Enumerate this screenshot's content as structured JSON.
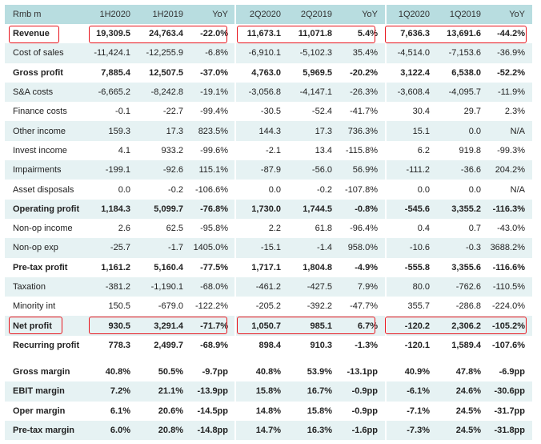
{
  "headers": [
    "Rmb m",
    "1H2020",
    "1H2019",
    "YoY",
    "2Q2020",
    "2Q2019",
    "YoY",
    "1Q2020",
    "1Q2019",
    "YoY"
  ],
  "rows": [
    {
      "label": "Revenue",
      "bold": true,
      "values": [
        "19,309.5",
        "24,763.4",
        "-22.0%",
        "11,673.1",
        "11,071.8",
        "5.4%",
        "7,636.3",
        "13,691.6",
        "-44.2%"
      ],
      "highlighted": true
    },
    {
      "label": "Cost of sales",
      "bold": false,
      "values": [
        "-11,424.1",
        "-12,255.9",
        "-6.8%",
        "-6,910.1",
        "-5,102.3",
        "35.4%",
        "-4,514.0",
        "-7,153.6",
        "-36.9%"
      ]
    },
    {
      "label": "Gross profit",
      "bold": true,
      "values": [
        "7,885.4",
        "12,507.5",
        "-37.0%",
        "4,763.0",
        "5,969.5",
        "-20.2%",
        "3,122.4",
        "6,538.0",
        "-52.2%"
      ]
    },
    {
      "label": "S&A costs",
      "bold": false,
      "values": [
        "-6,665.2",
        "-8,242.8",
        "-19.1%",
        "-3,056.8",
        "-4,147.1",
        "-26.3%",
        "-3,608.4",
        "-4,095.7",
        "-11.9%"
      ]
    },
    {
      "label": "Finance costs",
      "bold": false,
      "values": [
        "-0.1",
        "-22.7",
        "-99.4%",
        "-30.5",
        "-52.4",
        "-41.7%",
        "30.4",
        "29.7",
        "2.3%"
      ]
    },
    {
      "label": "Other income",
      "bold": false,
      "values": [
        "159.3",
        "17.3",
        "823.5%",
        "144.3",
        "17.3",
        "736.3%",
        "15.1",
        "0.0",
        "N/A"
      ]
    },
    {
      "label": "Invest income",
      "bold": false,
      "values": [
        "4.1",
        "933.2",
        "-99.6%",
        "-2.1",
        "13.4",
        "-115.8%",
        "6.2",
        "919.8",
        "-99.3%"
      ]
    },
    {
      "label": "Impairments",
      "bold": false,
      "values": [
        "-199.1",
        "-92.6",
        "115.1%",
        "-87.9",
        "-56.0",
        "56.9%",
        "-111.2",
        "-36.6",
        "204.2%"
      ]
    },
    {
      "label": "Asset disposals",
      "bold": false,
      "values": [
        "0.0",
        "-0.2",
        "-106.6%",
        "0.0",
        "-0.2",
        "-107.8%",
        "0.0",
        "0.0",
        "N/A"
      ]
    },
    {
      "label": "Operating profit",
      "bold": true,
      "values": [
        "1,184.3",
        "5,099.7",
        "-76.8%",
        "1,730.0",
        "1,744.5",
        "-0.8%",
        "-545.6",
        "3,355.2",
        "-116.3%"
      ]
    },
    {
      "label": "Non-op income",
      "bold": false,
      "values": [
        "2.6",
        "62.5",
        "-95.8%",
        "2.2",
        "61.8",
        "-96.4%",
        "0.4",
        "0.7",
        "-43.0%"
      ]
    },
    {
      "label": "Non-op exp",
      "bold": false,
      "values": [
        "-25.7",
        "-1.7",
        "1405.0%",
        "-15.1",
        "-1.4",
        "958.0%",
        "-10.6",
        "-0.3",
        "3688.2%"
      ]
    },
    {
      "label": "Pre-tax profit",
      "bold": true,
      "values": [
        "1,161.2",
        "5,160.4",
        "-77.5%",
        "1,717.1",
        "1,804.8",
        "-4.9%",
        "-555.8",
        "3,355.6",
        "-116.6%"
      ]
    },
    {
      "label": "Taxation",
      "bold": false,
      "values": [
        "-381.2",
        "-1,190.1",
        "-68.0%",
        "-461.2",
        "-427.5",
        "7.9%",
        "80.0",
        "-762.6",
        "-110.5%"
      ]
    },
    {
      "label": "Minority int",
      "bold": false,
      "values": [
        "150.5",
        "-679.0",
        "-122.2%",
        "-205.2",
        "-392.2",
        "-47.7%",
        "355.7",
        "-286.8",
        "-224.0%"
      ]
    },
    {
      "label": "Net profit",
      "bold": true,
      "values": [
        "930.5",
        "3,291.4",
        "-71.7%",
        "1,050.7",
        "985.1",
        "6.7%",
        "-120.2",
        "2,306.2",
        "-105.2%"
      ],
      "highlighted": true
    },
    {
      "label": "Recurring profit",
      "bold": true,
      "values": [
        "778.3",
        "2,499.7",
        "-68.9%",
        "898.4",
        "910.3",
        "-1.3%",
        "-120.1",
        "1,589.4",
        "-107.6%"
      ]
    },
    {
      "label": "Gross margin",
      "bold": true,
      "values": [
        "40.8%",
        "50.5%",
        "-9.7pp",
        "40.8%",
        "53.9%",
        "-13.1pp",
        "40.9%",
        "47.8%",
        "-6.9pp"
      ]
    },
    {
      "label": "EBIT margin",
      "bold": true,
      "values": [
        "7.2%",
        "21.1%",
        "-13.9pp",
        "15.8%",
        "16.7%",
        "-0.9pp",
        "-6.1%",
        "24.6%",
        "-30.6pp"
      ]
    },
    {
      "label": "Oper margin",
      "bold": true,
      "values": [
        "6.1%",
        "20.6%",
        "-14.5pp",
        "14.8%",
        "15.8%",
        "-0.9pp",
        "-7.1%",
        "24.5%",
        "-31.7pp"
      ]
    },
    {
      "label": "Pre-tax margin",
      "bold": true,
      "values": [
        "6.0%",
        "20.8%",
        "-14.8pp",
        "14.7%",
        "16.3%",
        "-1.6pp",
        "-7.3%",
        "24.5%",
        "-31.8pp"
      ]
    }
  ],
  "colors": {
    "header_bg": "#b8dde0",
    "shade_bg": "#e6f2f3",
    "highlight_border": "#e8141c"
  }
}
